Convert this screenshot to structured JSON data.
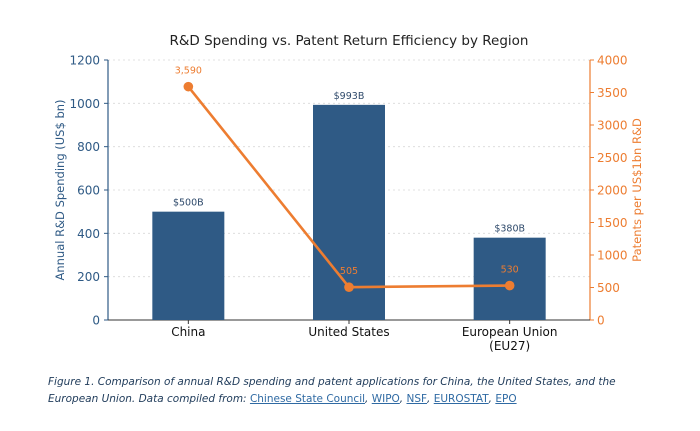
{
  "chart_data": {
    "type": "bar",
    "title": "R&D Spending vs. Patent Return Efficiency by Region",
    "categories": [
      "China",
      "United States",
      "European Union\n(EU27)"
    ],
    "series": [
      {
        "type": "bar",
        "axis": "left",
        "values": [
          500,
          993,
          380
        ],
        "labels": [
          "$500B",
          "$993B",
          "$380B"
        ],
        "color": "#2f5a85"
      },
      {
        "type": "line",
        "axis": "right",
        "values": [
          3590,
          505,
          530
        ],
        "labels": [
          "3,590",
          "505",
          "530"
        ],
        "color": "#ed7d31"
      }
    ],
    "y_left": {
      "label": "Annual R&D Spending (US$ bn)",
      "range": [
        0,
        1200
      ],
      "ticks": [
        "0",
        "200",
        "400",
        "600",
        "800",
        "1000",
        "1200"
      ]
    },
    "y_right": {
      "label": "Patents per US$1bn R&D",
      "range": [
        0,
        4000
      ],
      "ticks": [
        "0",
        "500",
        "1000",
        "1500",
        "2000",
        "2500",
        "3000",
        "3500",
        "4000"
      ]
    },
    "grid": true
  },
  "caption": {
    "text": "Figure 1. Comparison of annual R&D spending and patent applications for China, the United States, and the European Union. Data compiled from: ",
    "sources": [
      "Chinese State Council",
      "WIPO",
      "NSF",
      "EUROSTAT",
      "EPO"
    ]
  },
  "colors": {
    "bar": "#2f5a85",
    "line": "#ed7d31",
    "axis_left_text": "#2f5a85",
    "axis_right_text": "#ed7d31"
  }
}
